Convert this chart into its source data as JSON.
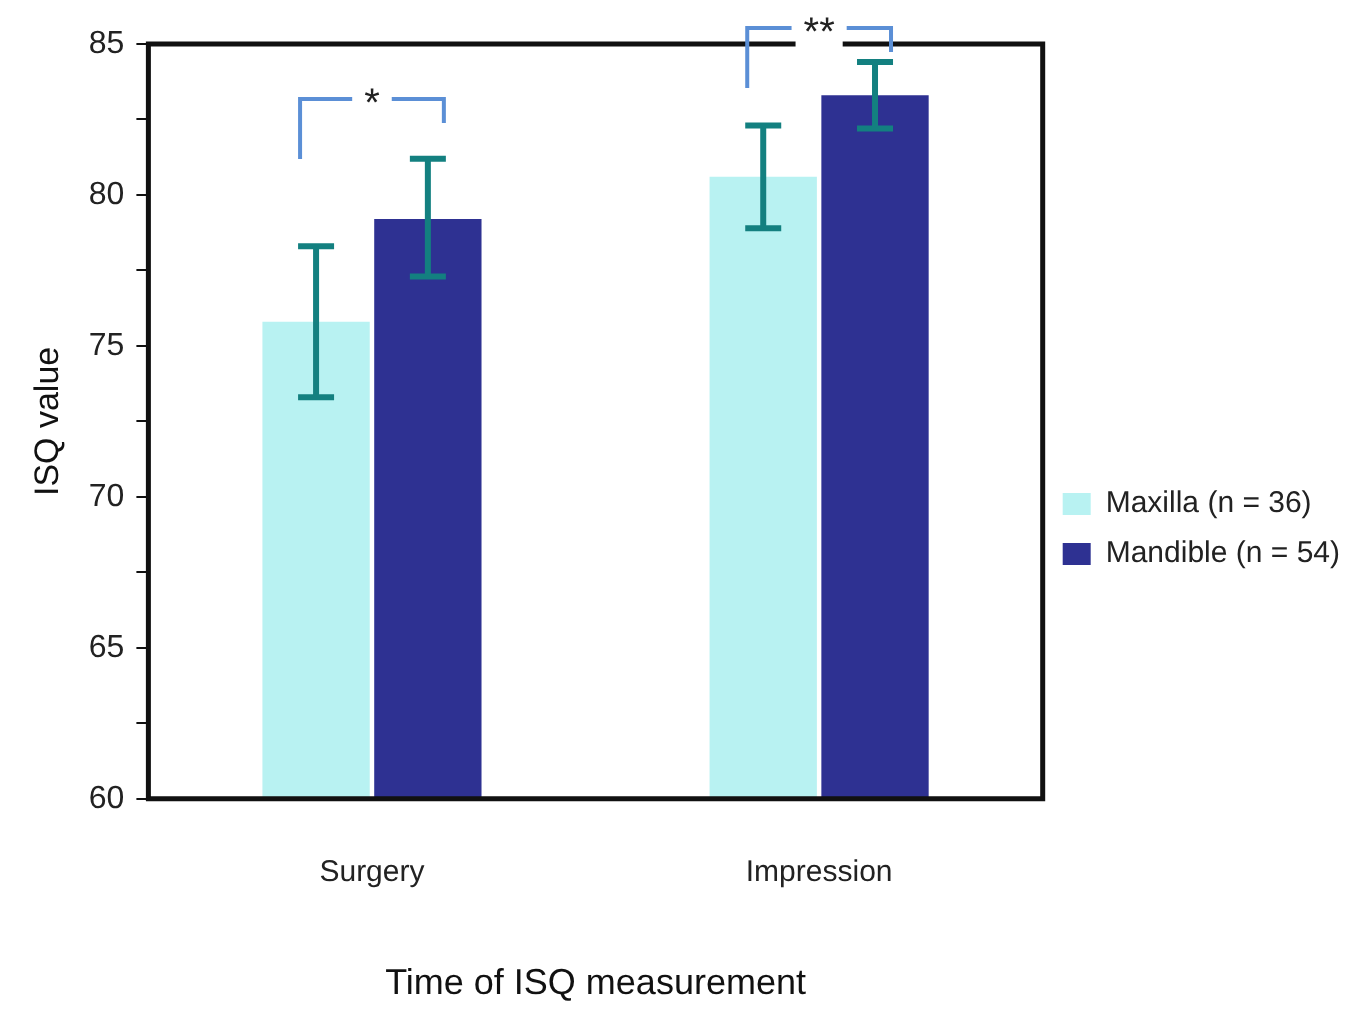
{
  "chart_data": {
    "type": "bar",
    "xlabel": "Time of ISQ measurement",
    "ylabel": "ISQ value",
    "categories": [
      "Surgery",
      "Impression"
    ],
    "series": [
      {
        "name": "Maxilla (n = 36)",
        "color": "#b8f2f2",
        "values": [
          75.8,
          80.6
        ],
        "errors": [
          [
            73.3,
            78.3
          ],
          [
            78.9,
            82.3
          ]
        ]
      },
      {
        "name": "Mandible (n = 54)",
        "color": "#2e3192",
        "values": [
          79.2,
          83.3
        ],
        "errors": [
          [
            77.3,
            81.2
          ],
          [
            82.2,
            84.4
          ]
        ]
      }
    ],
    "ylim": [
      60,
      85
    ],
    "yticks": [
      60,
      {
        "value": 62.5,
        "label": null
      },
      65,
      {
        "value": 67.5,
        "label": null
      },
      70,
      {
        "value": 72.5,
        "label": null
      },
      75,
      {
        "value": 77.5,
        "label": null
      },
      80,
      {
        "value": 82.5,
        "label": null
      },
      85
    ],
    "grid": false,
    "legend": "right",
    "annotations": [
      "*",
      "**"
    ]
  }
}
